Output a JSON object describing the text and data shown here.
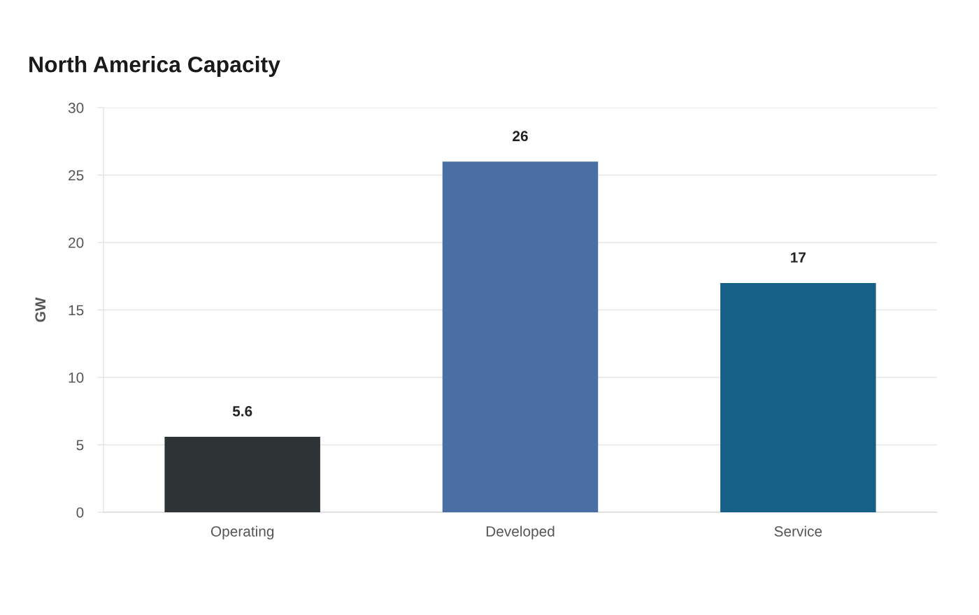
{
  "chart_data": {
    "type": "bar",
    "title": "North America Capacity",
    "ylabel": "GW",
    "categories": [
      "Operating",
      "Developed",
      "Service"
    ],
    "values": [
      5.6,
      26,
      17
    ],
    "colors": [
      "#2e3436",
      "#4a6fa5",
      "#166088"
    ],
    "ylim": [
      0,
      30
    ],
    "yticks": [
      0,
      5,
      10,
      15,
      20,
      25,
      30
    ],
    "grid": "y",
    "data_labels": true
  }
}
